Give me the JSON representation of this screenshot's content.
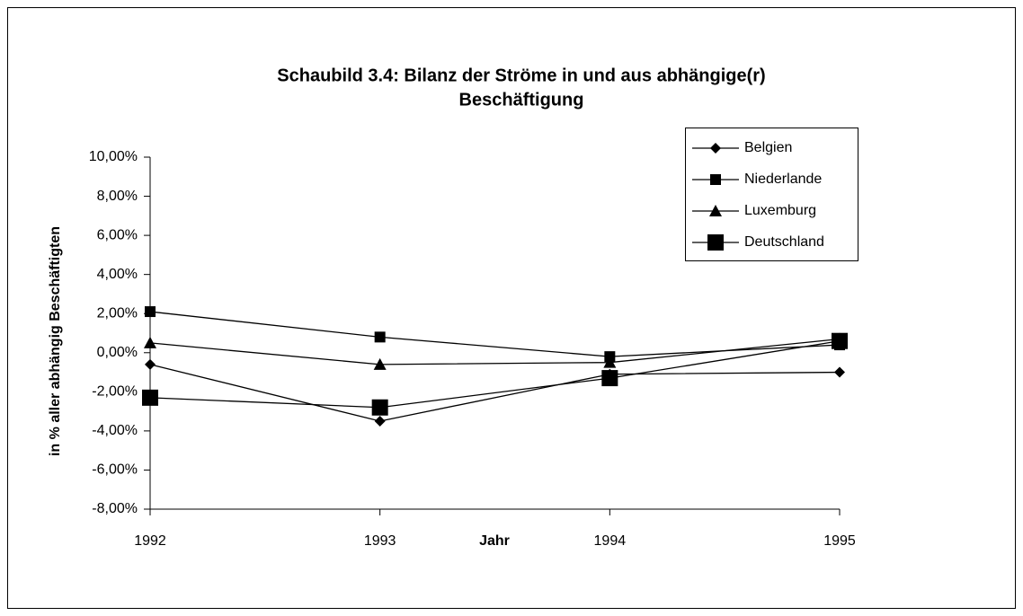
{
  "chart_data": {
    "type": "line",
    "title": "Schaubild 3.4: Bilanz der Ströme in und aus abhängige(r)",
    "subtitle": "Beschäftigung",
    "x_label": "Jahr",
    "y_label": "in % aller abhängig Beschäftigten",
    "categories": [
      "1992",
      "1993",
      "1994",
      "1995"
    ],
    "series": [
      {
        "name": "Belgien",
        "color": "#000000",
        "marker": "diamond",
        "values": [
          -0.6,
          -3.5,
          -1.1,
          -1.0
        ]
      },
      {
        "name": "Niederlande",
        "color": "#000000",
        "marker": "square",
        "values": [
          2.1,
          0.8,
          -0.2,
          0.4
        ]
      },
      {
        "name": "Luxemburg",
        "color": "#000000",
        "marker": "triangle",
        "values": [
          0.5,
          -0.6,
          -0.5,
          0.7
        ]
      },
      {
        "name": "Deutschland",
        "color": "#000000",
        "marker": "large-square",
        "values": [
          -2.3,
          -2.8,
          -1.3,
          0.6
        ]
      }
    ],
    "ylim": [
      -8,
      10
    ],
    "yticks": [
      {
        "value": -8,
        "label": "-8,00%"
      },
      {
        "value": -6,
        "label": "-6,00%"
      },
      {
        "value": -4,
        "label": "-4,00%"
      },
      {
        "value": -2,
        "label": "-2,00%"
      },
      {
        "value": 0,
        "label": "0,00%"
      },
      {
        "value": 2,
        "label": "2,00%"
      },
      {
        "value": 4,
        "label": "4,00%"
      },
      {
        "value": 6,
        "label": "6,00%"
      },
      {
        "value": 8,
        "label": "8,00%"
      },
      {
        "value": 10,
        "label": "10,00%"
      }
    ],
    "grid": false,
    "legend": "upper-right"
  }
}
